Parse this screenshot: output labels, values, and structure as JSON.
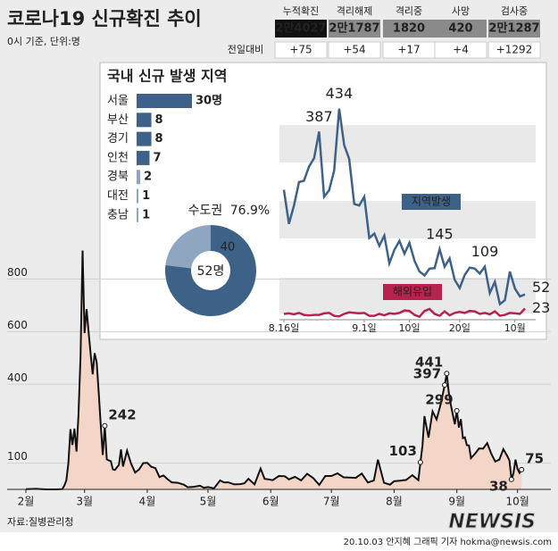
{
  "header": {
    "title": "코로나19 신규확진 추이",
    "subtitle": "0시 기준, 단위:명"
  },
  "stats": {
    "columns": [
      "누적확진",
      "격리해제",
      "격리중",
      "사망",
      "검사중"
    ],
    "totals": [
      "2만4027",
      "2만1787",
      "1820",
      "420",
      "2만1287"
    ],
    "row_label": "전일대비",
    "changes": [
      "+75",
      "+54",
      "+17",
      "+4",
      "+1292"
    ]
  },
  "chart_data": [
    {
      "type": "area",
      "line_color": "#111111",
      "fill_color": "#f3d6c8",
      "x": [
        0,
        5,
        10,
        15,
        18,
        19,
        20,
        21,
        22,
        23,
        24,
        25,
        26,
        27,
        28,
        29,
        30,
        31,
        32,
        33,
        34,
        35,
        36,
        37,
        38,
        39,
        40,
        41,
        42,
        43,
        44,
        45,
        46,
        47,
        48,
        50,
        52,
        54,
        56,
        58,
        60,
        62,
        64,
        66,
        68,
        70,
        72,
        75,
        78,
        80,
        83,
        86,
        88,
        90,
        93,
        96,
        98,
        100,
        103,
        106,
        108,
        110,
        113,
        116,
        118,
        120,
        122,
        125,
        128,
        130,
        133,
        136,
        139,
        142,
        145,
        148,
        151,
        154,
        157,
        160,
        163,
        166,
        169,
        172,
        174,
        177,
        180,
        182,
        185,
        188,
        191,
        194,
        195,
        196,
        197,
        199,
        200,
        201,
        203,
        205,
        207,
        208,
        209,
        210,
        212,
        213,
        214,
        215,
        216,
        217,
        218,
        219,
        220,
        222,
        224,
        226,
        228,
        230,
        232,
        234,
        236,
        238,
        239,
        240,
        241,
        242,
        243,
        244,
        245
      ],
      "values": [
        1,
        2,
        0,
        0,
        1,
        15,
        34,
        100,
        229,
        169,
        231,
        144,
        284,
        505,
        909,
        595,
        686,
        600,
        516,
        438,
        518,
        483,
        367,
        248,
        131,
        242,
        114,
        110,
        107,
        76,
        74,
        84,
        93,
        152,
        87,
        147,
        98,
        64,
        76,
        100,
        101,
        86,
        81,
        47,
        53,
        39,
        27,
        25,
        18,
        8,
        10,
        14,
        6,
        9,
        4,
        34,
        26,
        27,
        19,
        20,
        23,
        40,
        19,
        79,
        40,
        38,
        35,
        51,
        50,
        38,
        48,
        34,
        59,
        43,
        17,
        51,
        51,
        61,
        46,
        45,
        44,
        60,
        26,
        34,
        113,
        25,
        18,
        31,
        33,
        36,
        54,
        35,
        103,
        166,
        279,
        197,
        246,
        297,
        266,
        324,
        397,
        441,
        371,
        323,
        248,
        299,
        235,
        267,
        195,
        198,
        168,
        167,
        119,
        136,
        156,
        155,
        176,
        136,
        106,
        113,
        153,
        126,
        110,
        38,
        61,
        113,
        77,
        63,
        75
      ],
      "xlim": [
        0,
        245
      ],
      "xticks": [
        {
          "value": 0,
          "label": "2월"
        },
        {
          "value": 29,
          "label": "3월"
        },
        {
          "value": 60,
          "label": "4월"
        },
        {
          "value": 90,
          "label": "5월"
        },
        {
          "value": 121,
          "label": "6월"
        },
        {
          "value": 151,
          "label": "7월"
        },
        {
          "value": 182,
          "label": "8월"
        },
        {
          "value": 213,
          "label": "9월"
        },
        {
          "value": 243,
          "label": "10월"
        }
      ],
      "ylim": [
        0,
        950
      ],
      "yticks": [
        100,
        400,
        600,
        800
      ],
      "grid": true,
      "annotations": [
        {
          "x": 39,
          "value": 242
        },
        {
          "x": 195,
          "value": 103
        },
        {
          "x": 207,
          "value": 397
        },
        {
          "x": 208,
          "value": 441
        },
        {
          "x": 213,
          "value": 299
        },
        {
          "x": 240,
          "value": 38
        },
        {
          "x": 245,
          "value": 75
        }
      ]
    },
    {
      "type": "line",
      "x": [
        0,
        1,
        2,
        3,
        4,
        5,
        6,
        7,
        8,
        9,
        10,
        11,
        12,
        13,
        14,
        15,
        16,
        17,
        18,
        19,
        20,
        21,
        22,
        23,
        24,
        25,
        26,
        27,
        28,
        29,
        30,
        31,
        32,
        33,
        34,
        35,
        36,
        37,
        38,
        39,
        40,
        41,
        42,
        43,
        44,
        45,
        46,
        47,
        48
      ],
      "series": [
        {
          "name": "지역발생",
          "color": "#3d6187",
          "values": [
            267,
            197,
            235,
            283,
            286,
            315,
            332,
            387,
            253,
            266,
            307,
            434,
            359,
            331,
            238,
            235,
            253,
            168,
            177,
            152,
            173,
            116,
            144,
            162,
            136,
            158,
            121,
            99,
            91,
            105,
            106,
            145,
            109,
            126,
            82,
            65,
            92,
            107,
            105,
            95,
            109,
            55,
            78,
            32,
            40,
            99,
            64,
            48,
            52
          ]
        },
        {
          "name": "해외유입",
          "color": "#b5234e",
          "values": [
            12,
            13,
            11,
            14,
            10,
            9,
            10,
            10,
            13,
            14,
            8,
            7,
            12,
            15,
            14,
            13,
            14,
            8,
            8,
            12,
            9,
            13,
            12,
            14,
            19,
            18,
            10,
            6,
            18,
            22,
            12,
            8,
            17,
            9,
            14,
            16,
            14,
            18,
            17,
            12,
            14,
            11,
            17,
            8,
            10,
            14,
            13,
            12,
            23
          ]
        }
      ],
      "xlim": [
        0,
        48
      ],
      "xticks": [
        {
          "value": 0,
          "label": "8.16일"
        },
        {
          "value": 16,
          "label": "9.1일"
        },
        {
          "value": 25,
          "label": "10일"
        },
        {
          "value": 35,
          "label": "20일"
        },
        {
          "value": 46,
          "label": "10월"
        }
      ],
      "ylim": [
        0,
        450
      ],
      "annotations": [
        {
          "x": 7,
          "value": 387,
          "color": "#3d6187"
        },
        {
          "x": 11,
          "value": 434,
          "color": "#3d6187"
        },
        {
          "x": 31,
          "value": 145,
          "color": "#3d6187"
        },
        {
          "x": 40,
          "value": 109,
          "color": "#3d6187"
        },
        {
          "x": 48,
          "value": 52,
          "color": "#3d6187"
        },
        {
          "x": 48,
          "value": 23,
          "color": "#b5234e"
        }
      ]
    },
    {
      "type": "hbar",
      "title": "국내 신규 발생 지역",
      "categories": [
        "서울",
        "부산",
        "경기",
        "인천",
        "경북",
        "대전",
        "충남"
      ],
      "values": [
        30,
        8,
        8,
        7,
        2,
        1,
        1
      ],
      "value_labels": [
        "30명",
        "8",
        "8",
        "7",
        "2",
        "1",
        "1"
      ],
      "colors": [
        "#3d6187",
        "#3d6187",
        "#3d6187",
        "#3d6187",
        "#8fa6c0",
        "#8fa6c0",
        "#8fa6c0"
      ],
      "xlim": [
        0,
        30
      ]
    },
    {
      "type": "donut",
      "label": "수도권",
      "share": 76.9,
      "share_label": "76.9%",
      "total": 52,
      "total_label": "52명",
      "values": [
        40,
        12
      ],
      "colors": [
        "#3d6187",
        "#8fa6c0"
      ]
    }
  ],
  "footer": {
    "source": "자료:질병관리청",
    "credit": "20.10.03 안지혜 그래픽 기자 hokma@newsis.com",
    "watermark": "NEWSIS"
  }
}
